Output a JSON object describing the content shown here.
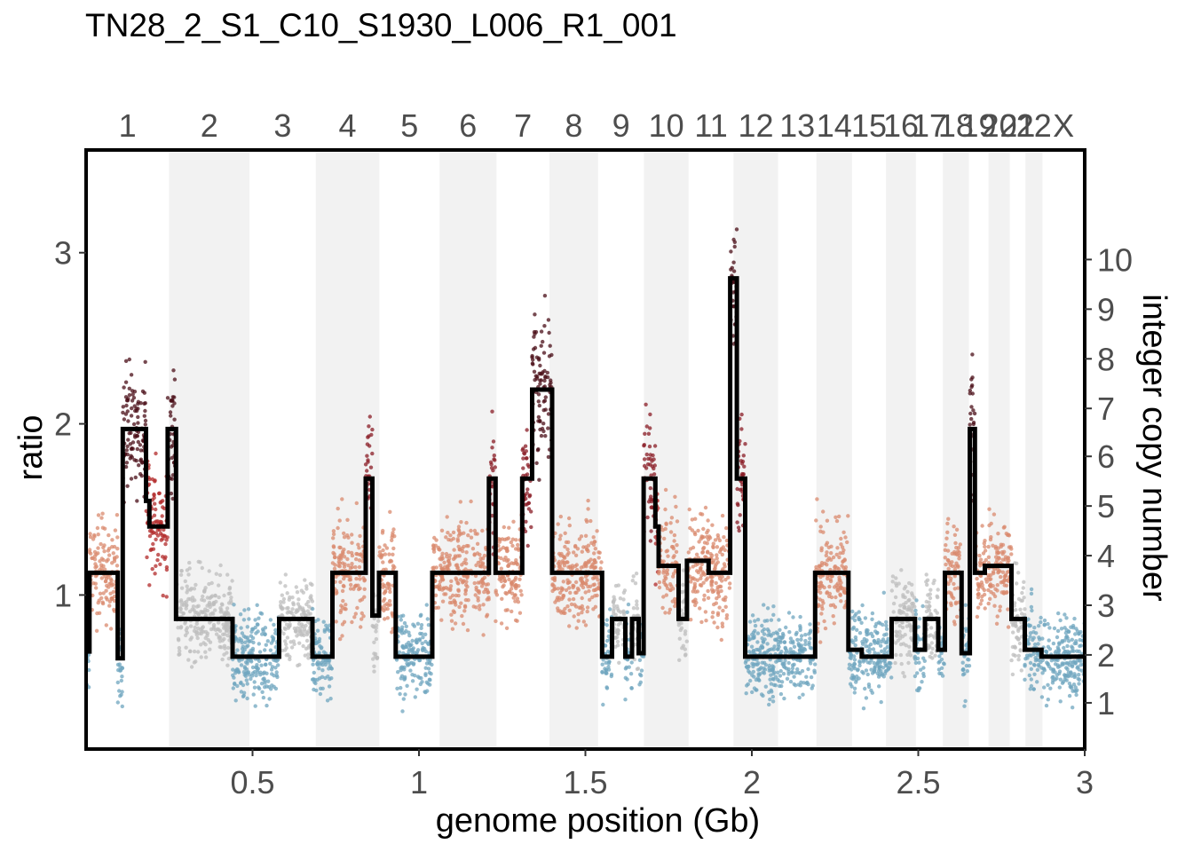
{
  "title": "TN28_2_S1_C10_S1930_L006_R1_001",
  "chart_data": {
    "type": "scatter",
    "title": "TN28_2_S1_C10_S1930_L006_R1_001",
    "xlabel": "genome position (Gb)",
    "ylabel": "ratio",
    "ylabel_right": "integer copy number",
    "xlim": [
      0,
      3.0
    ],
    "ylim": [
      0.1,
      3.6
    ],
    "x_ticks": [
      0.5,
      1,
      1.5,
      2,
      2.5,
      3
    ],
    "x_tick_labels": [
      "0.5",
      "1",
      "1.5",
      "2",
      "2.5",
      "3"
    ],
    "y_ticks": [
      1,
      2,
      3
    ],
    "y_tick_labels": [
      "1",
      "2",
      "3"
    ],
    "right_ticks_ratio": [
      0.37,
      0.65,
      0.94,
      1.23,
      1.52,
      1.81,
      2.09,
      2.38,
      2.67,
      2.96
    ],
    "right_tick_labels": [
      "1",
      "2",
      "3",
      "4",
      "5",
      "6",
      "7",
      "8",
      "9",
      "10"
    ],
    "chromosomes": [
      {
        "label": "1",
        "start": 0.0,
        "end": 0.249
      },
      {
        "label": "2",
        "start": 0.249,
        "end": 0.491
      },
      {
        "label": "3",
        "start": 0.491,
        "end": 0.69
      },
      {
        "label": "4",
        "start": 0.69,
        "end": 0.881
      },
      {
        "label": "5",
        "start": 0.881,
        "end": 1.062
      },
      {
        "label": "6",
        "start": 1.062,
        "end": 1.233
      },
      {
        "label": "7",
        "start": 1.233,
        "end": 1.392
      },
      {
        "label": "8",
        "start": 1.392,
        "end": 1.538
      },
      {
        "label": "9",
        "start": 1.538,
        "end": 1.676
      },
      {
        "label": "10",
        "start": 1.676,
        "end": 1.81
      },
      {
        "label": "11",
        "start": 1.81,
        "end": 1.945
      },
      {
        "label": "12",
        "start": 1.945,
        "end": 2.079
      },
      {
        "label": "13",
        "start": 2.079,
        "end": 2.194
      },
      {
        "label": "14",
        "start": 2.194,
        "end": 2.301
      },
      {
        "label": "15",
        "start": 2.301,
        "end": 2.403
      },
      {
        "label": "16",
        "start": 2.403,
        "end": 2.493
      },
      {
        "label": "17",
        "start": 2.493,
        "end": 2.574
      },
      {
        "label": "18",
        "start": 2.574,
        "end": 2.652
      },
      {
        "label": "19",
        "start": 2.652,
        "end": 2.711
      },
      {
        "label": "20",
        "start": 2.711,
        "end": 2.775
      },
      {
        "label": "21",
        "start": 2.775,
        "end": 2.822
      },
      {
        "label": "22",
        "start": 2.822,
        "end": 2.873
      },
      {
        "label": "X",
        "start": 2.873,
        "end": 3.0
      }
    ],
    "segments": [
      {
        "start": 0.0,
        "end": 0.01,
        "ratio": 0.67,
        "cn": 2
      },
      {
        "start": 0.01,
        "end": 0.095,
        "ratio": 1.13,
        "cn": 4
      },
      {
        "start": 0.095,
        "end": 0.11,
        "ratio": 0.63,
        "cn": 2
      },
      {
        "start": 0.11,
        "end": 0.18,
        "ratio": 1.97,
        "cn": 7
      },
      {
        "start": 0.18,
        "end": 0.19,
        "ratio": 1.55,
        "cn": 5
      },
      {
        "start": 0.19,
        "end": 0.245,
        "ratio": 1.4,
        "cn": 5
      },
      {
        "start": 0.245,
        "end": 0.27,
        "ratio": 1.97,
        "cn": 7
      },
      {
        "start": 0.27,
        "end": 0.44,
        "ratio": 0.86,
        "cn": 3
      },
      {
        "start": 0.44,
        "end": 0.58,
        "ratio": 0.64,
        "cn": 2
      },
      {
        "start": 0.58,
        "end": 0.68,
        "ratio": 0.86,
        "cn": 3
      },
      {
        "start": 0.68,
        "end": 0.74,
        "ratio": 0.64,
        "cn": 2
      },
      {
        "start": 0.74,
        "end": 0.84,
        "ratio": 1.13,
        "cn": 4
      },
      {
        "start": 0.84,
        "end": 0.86,
        "ratio": 1.68,
        "cn": 6
      },
      {
        "start": 0.86,
        "end": 0.88,
        "ratio": 0.88,
        "cn": 3
      },
      {
        "start": 0.88,
        "end": 0.93,
        "ratio": 1.13,
        "cn": 4
      },
      {
        "start": 0.93,
        "end": 1.04,
        "ratio": 0.64,
        "cn": 2
      },
      {
        "start": 1.04,
        "end": 1.21,
        "ratio": 1.13,
        "cn": 4
      },
      {
        "start": 1.21,
        "end": 1.23,
        "ratio": 1.68,
        "cn": 6
      },
      {
        "start": 1.23,
        "end": 1.31,
        "ratio": 1.13,
        "cn": 4
      },
      {
        "start": 1.31,
        "end": 1.34,
        "ratio": 1.68,
        "cn": 6
      },
      {
        "start": 1.34,
        "end": 1.4,
        "ratio": 2.2,
        "cn": 8
      },
      {
        "start": 1.4,
        "end": 1.55,
        "ratio": 1.13,
        "cn": 4
      },
      {
        "start": 1.55,
        "end": 1.58,
        "ratio": 0.64,
        "cn": 2
      },
      {
        "start": 1.58,
        "end": 1.62,
        "ratio": 0.86,
        "cn": 3
      },
      {
        "start": 1.62,
        "end": 1.64,
        "ratio": 0.64,
        "cn": 2
      },
      {
        "start": 1.64,
        "end": 1.66,
        "ratio": 0.86,
        "cn": 3
      },
      {
        "start": 1.66,
        "end": 1.675,
        "ratio": 0.66,
        "cn": 2
      },
      {
        "start": 1.675,
        "end": 1.71,
        "ratio": 1.68,
        "cn": 6
      },
      {
        "start": 1.71,
        "end": 1.72,
        "ratio": 1.4,
        "cn": 5
      },
      {
        "start": 1.72,
        "end": 1.78,
        "ratio": 1.17,
        "cn": 4
      },
      {
        "start": 1.78,
        "end": 1.805,
        "ratio": 0.86,
        "cn": 3
      },
      {
        "start": 1.805,
        "end": 1.87,
        "ratio": 1.2,
        "cn": 4
      },
      {
        "start": 1.87,
        "end": 1.935,
        "ratio": 1.13,
        "cn": 4
      },
      {
        "start": 1.935,
        "end": 1.955,
        "ratio": 2.85,
        "cn": 10
      },
      {
        "start": 1.955,
        "end": 1.98,
        "ratio": 1.68,
        "cn": 6
      },
      {
        "start": 1.98,
        "end": 2.19,
        "ratio": 0.64,
        "cn": 2
      },
      {
        "start": 2.19,
        "end": 2.29,
        "ratio": 1.13,
        "cn": 4
      },
      {
        "start": 2.29,
        "end": 2.33,
        "ratio": 0.68,
        "cn": 2
      },
      {
        "start": 2.33,
        "end": 2.42,
        "ratio": 0.64,
        "cn": 2
      },
      {
        "start": 2.42,
        "end": 2.49,
        "ratio": 0.86,
        "cn": 3
      },
      {
        "start": 2.49,
        "end": 2.52,
        "ratio": 0.68,
        "cn": 2
      },
      {
        "start": 2.52,
        "end": 2.56,
        "ratio": 0.86,
        "cn": 3
      },
      {
        "start": 2.56,
        "end": 2.58,
        "ratio": 0.68,
        "cn": 2
      },
      {
        "start": 2.58,
        "end": 2.63,
        "ratio": 1.13,
        "cn": 4
      },
      {
        "start": 2.63,
        "end": 2.655,
        "ratio": 0.66,
        "cn": 2
      },
      {
        "start": 2.655,
        "end": 2.67,
        "ratio": 1.97,
        "cn": 7
      },
      {
        "start": 2.67,
        "end": 2.7,
        "ratio": 1.13,
        "cn": 4
      },
      {
        "start": 2.7,
        "end": 2.78,
        "ratio": 1.17,
        "cn": 4
      },
      {
        "start": 2.78,
        "end": 2.82,
        "ratio": 0.86,
        "cn": 3
      },
      {
        "start": 2.82,
        "end": 2.87,
        "ratio": 0.68,
        "cn": 2
      },
      {
        "start": 2.87,
        "end": 3.0,
        "ratio": 0.64,
        "cn": 2
      }
    ],
    "cn_colors": {
      "1": "#4a6fa5",
      "2": "#6fa6bf",
      "3": "#bdbdbd",
      "4": "#d98a6e",
      "5": "#b22a2a",
      "6": "#8a1c25",
      "7": "#4a0d17",
      "8": "#4a0d17",
      "9": "#4a0d17",
      "10": "#4a0d17"
    },
    "band_color": "#f2f2f2",
    "line_color": "#000000"
  }
}
